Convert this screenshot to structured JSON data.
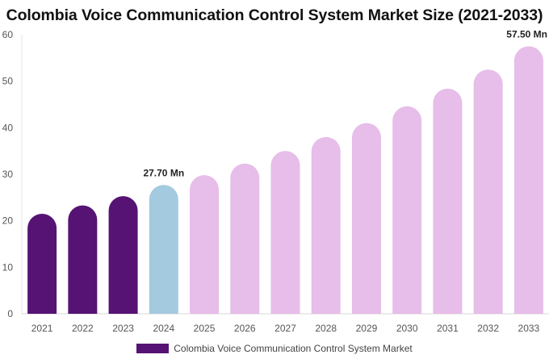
{
  "chart_data": {
    "type": "bar",
    "title": "Colombia Voice Communication Control System Market Size (2021-2033)",
    "categories": [
      "2021",
      "2022",
      "2023",
      "2024",
      "2025",
      "2026",
      "2027",
      "2028",
      "2029",
      "2030",
      "2031",
      "2032",
      "2033"
    ],
    "series": [
      {
        "name": "Colombia Voice Communication Control System Market",
        "values": [
          21.5,
          23.3,
          25.3,
          27.7,
          29.8,
          32.3,
          35.0,
          38.0,
          41.0,
          44.6,
          48.4,
          52.5,
          57.5
        ]
      }
    ],
    "bar_colors": [
      "#561373",
      "#561373",
      "#561373",
      "#a4cadf",
      "#e7bde9",
      "#e7bde9",
      "#e7bde9",
      "#e7bde9",
      "#e7bde9",
      "#e7bde9",
      "#e7bde9",
      "#e7bde9",
      "#e7bde9"
    ],
    "data_labels": [
      {
        "category": "2024",
        "text": "27.70 Mn"
      },
      {
        "category": "2033",
        "text": "57.50 Mn"
      }
    ],
    "ylim": [
      0,
      60
    ],
    "yticks": [
      0,
      10,
      20,
      30,
      40,
      50,
      60
    ],
    "xlabel": "",
    "ylabel": "",
    "grid": false,
    "legend": {
      "position": "bottom",
      "color": "#561373",
      "label": "Colombia Voice Communication Control System Market"
    }
  }
}
